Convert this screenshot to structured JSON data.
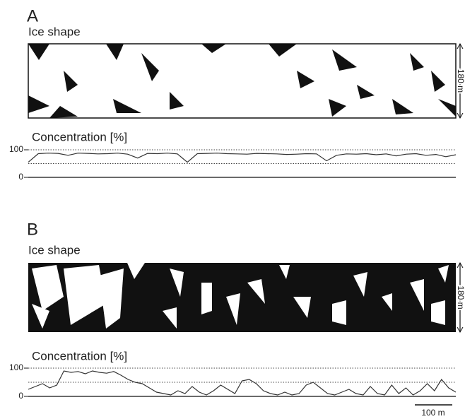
{
  "chart_data": [
    {
      "type": "line",
      "panel": "A",
      "image_label": "Ice shape",
      "scale_label": "180 m",
      "title": "Concentration [%]",
      "values": [
        55,
        86,
        88,
        87,
        80,
        88,
        87,
        85,
        86,
        88,
        84,
        70,
        87,
        86,
        88,
        85,
        55,
        86,
        87,
        88,
        86,
        85,
        84,
        87,
        86,
        85,
        83,
        84,
        86,
        85,
        60,
        80,
        85,
        84,
        86,
        82,
        85,
        78,
        84,
        86,
        80,
        83,
        75,
        82
      ],
      "color": "#333333",
      "ylim": [
        0,
        100
      ],
      "yticks": [
        0,
        100
      ],
      "dotted_lines": [
        50,
        100
      ]
    },
    {
      "type": "line",
      "panel": "B",
      "image_label": "Ice shape",
      "scale_label": "180 m",
      "title": "Concentration [%]",
      "values": [
        25,
        35,
        45,
        30,
        40,
        90,
        85,
        88,
        80,
        90,
        85,
        82,
        88,
        75,
        60,
        50,
        45,
        30,
        15,
        10,
        5,
        20,
        10,
        35,
        15,
        5,
        20,
        40,
        25,
        10,
        55,
        60,
        45,
        20,
        10,
        5,
        15,
        5,
        10,
        40,
        50,
        30,
        10,
        5,
        15,
        25,
        10,
        5,
        35,
        10,
        5,
        40,
        10,
        30,
        5,
        20,
        45,
        20,
        60,
        30,
        15
      ],
      "color": "#333333",
      "ylim": [
        0,
        100
      ],
      "yticks": [
        0,
        100
      ],
      "dotted_lines": [
        50,
        100
      ],
      "scale_bar": "100 m"
    }
  ]
}
